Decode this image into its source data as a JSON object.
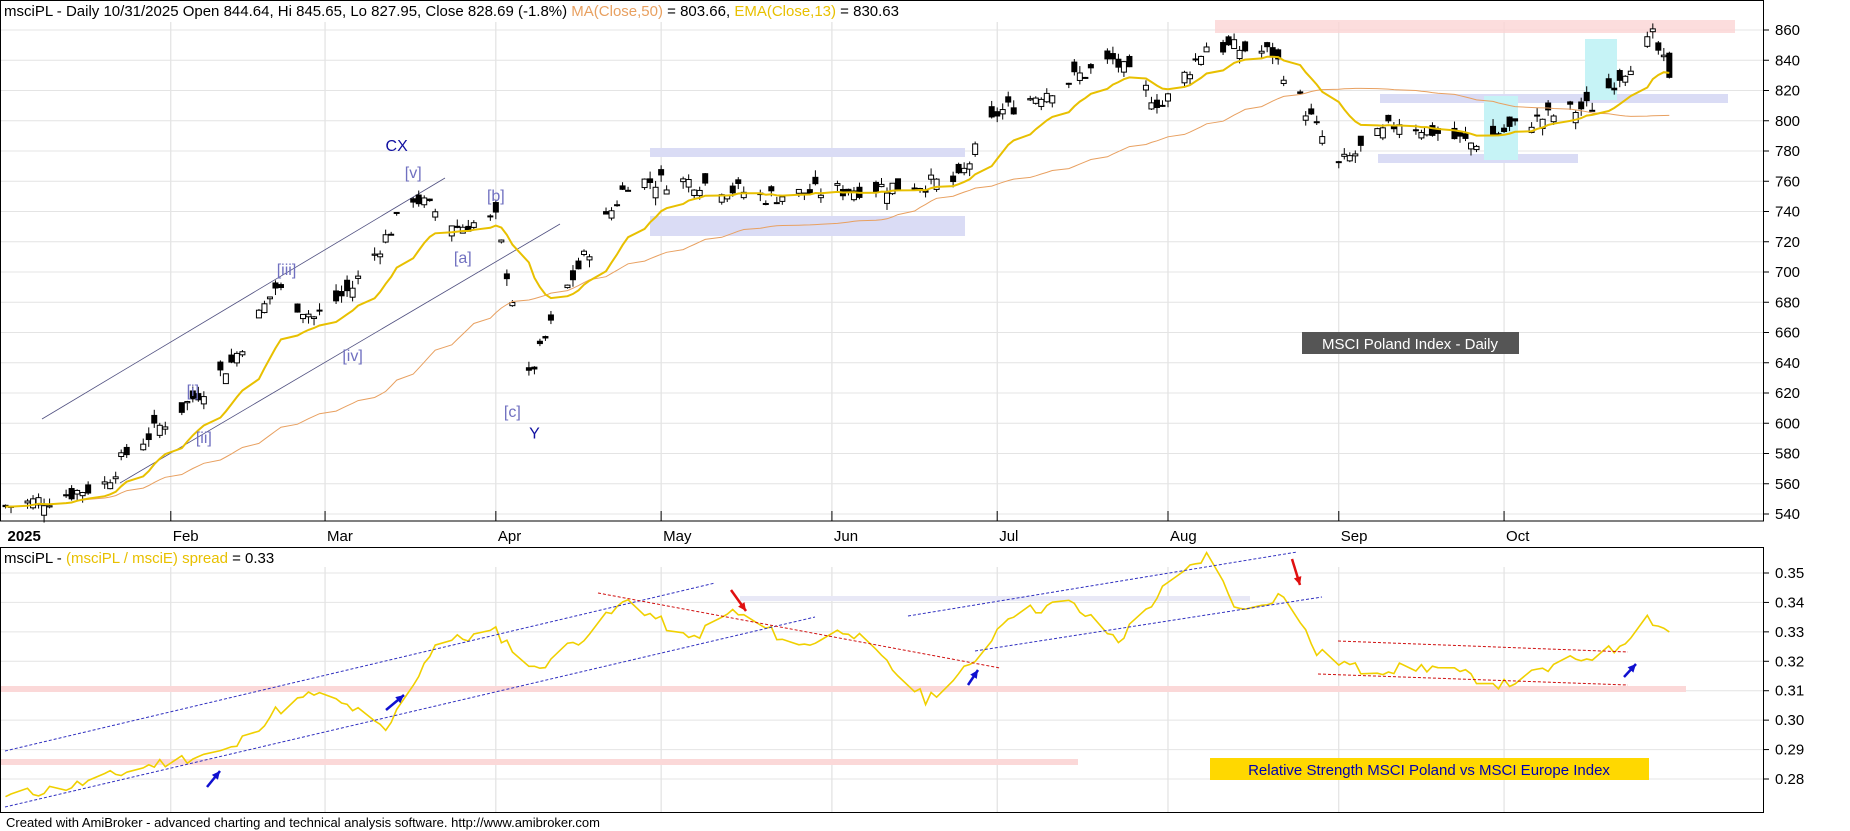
{
  "upper_header": {
    "ticker": "msciPL",
    "info": " - Daily 10/31/2025 Open 844.64, Hi 845.65, Lo 827.95, Close 828.69 (-1.8%) ",
    "ma_label": "MA(Close,50)",
    "ma_value": " = 803.66, ",
    "ema_label": "EMA(Close,13)",
    "ema_value": " = 830.63"
  },
  "lower_header": {
    "ticker": "msciPL",
    "dash": " - ",
    "spread_label": "(msciPL / msciE) spread",
    "spread_value": " = 0.33"
  },
  "footer": "Created with AmiBroker - advanced charting and technical analysis software. http://www.amibroker.com",
  "colors": {
    "ma50": "#e8a060",
    "ema13": "#e8c000",
    "spread": "#f0d000",
    "wave_label": "#7070c0",
    "wave_major": "#1010a0"
  },
  "chart_data": [
    {
      "type": "candlestick",
      "title": "MSCI Poland Index - Daily",
      "ylim": [
        530,
        870
      ],
      "y_ticks": [
        540,
        560,
        580,
        600,
        620,
        640,
        660,
        680,
        700,
        720,
        740,
        760,
        780,
        800,
        820,
        840,
        860
      ],
      "x_tick_labels": [
        "2025",
        "Feb",
        "Mar",
        "Apr",
        "May",
        "Jun",
        "Jul",
        "Aug",
        "Sep",
        "Oct"
      ],
      "last_bar": {
        "date": "10/31/2025",
        "open": 844.64,
        "high": 845.65,
        "low": 827.95,
        "close": 828.69,
        "change_pct": -1.8
      },
      "ma50_last": 803.66,
      "ema13_last": 830.63,
      "close_series_approx": [
        {
          "date": "2025-01-02",
          "close": 545
        },
        {
          "date": "2025-01-10",
          "close": 550
        },
        {
          "date": "2025-01-20",
          "close": 560
        },
        {
          "date": "2025-01-24",
          "close": 580
        },
        {
          "date": "2025-02-03",
          "close": 610
        },
        {
          "date": "2025-02-12",
          "close": 640
        },
        {
          "date": "2025-02-20",
          "close": 690
        },
        {
          "date": "2025-02-27",
          "close": 670
        },
        {
          "date": "2025-03-06",
          "close": 690
        },
        {
          "date": "2025-03-17",
          "close": 750
        },
        {
          "date": "2025-03-25",
          "close": 730
        },
        {
          "date": "2025-04-01",
          "close": 735
        },
        {
          "date": "2025-04-07",
          "close": 630
        },
        {
          "date": "2025-04-14",
          "close": 690
        },
        {
          "date": "2025-04-25",
          "close": 760
        },
        {
          "date": "2025-05-07",
          "close": 760
        },
        {
          "date": "2025-05-20",
          "close": 750
        },
        {
          "date": "2025-06-05",
          "close": 755
        },
        {
          "date": "2025-06-24",
          "close": 760
        },
        {
          "date": "2025-07-01",
          "close": 805
        },
        {
          "date": "2025-07-10",
          "close": 820
        },
        {
          "date": "2025-07-22",
          "close": 840
        },
        {
          "date": "2025-07-31",
          "close": 810
        },
        {
          "date": "2025-08-08",
          "close": 850
        },
        {
          "date": "2025-08-20",
          "close": 845
        },
        {
          "date": "2025-09-01",
          "close": 770
        },
        {
          "date": "2025-09-12",
          "close": 800
        },
        {
          "date": "2025-09-25",
          "close": 785
        },
        {
          "date": "2025-10-06",
          "close": 800
        },
        {
          "date": "2025-10-17",
          "close": 810
        },
        {
          "date": "2025-10-28",
          "close": 855
        },
        {
          "date": "2025-10-31",
          "close": 828.69
        }
      ],
      "wave_labels": [
        {
          "text": "[i]",
          "date": "2025-02-05",
          "value": 618
        },
        {
          "text": "[ii]",
          "date": "2025-02-07",
          "value": 587
        },
        {
          "text": "[iii]",
          "date": "2025-02-22",
          "value": 698
        },
        {
          "text": "[iv]",
          "date": "2025-03-06",
          "value": 641
        },
        {
          "text": "[v]",
          "date": "2025-03-17",
          "value": 762
        },
        {
          "text": "[a]",
          "date": "2025-03-26",
          "value": 706
        },
        {
          "text": "[b]",
          "date": "2025-04-01",
          "value": 747
        },
        {
          "text": "[c]",
          "date": "2025-04-04",
          "value": 604
        },
        {
          "text": "CX",
          "date": "2025-03-14",
          "value": 780
        },
        {
          "text": "Y",
          "date": "2025-04-08",
          "value": 590
        }
      ]
    },
    {
      "type": "line",
      "title": "Relative Strength MSCI Poland vs MSCI Europe Index",
      "series": [
        {
          "name": "(msciPL / msciE) spread",
          "last": 0.33
        }
      ],
      "ylim": [
        0.273,
        0.356
      ],
      "y_ticks": [
        0.28,
        0.29,
        0.3,
        0.31,
        0.32,
        0.33,
        0.34,
        0.35
      ],
      "values_approx": [
        {
          "date": "2025-01-02",
          "value": 0.274
        },
        {
          "date": "2025-01-15",
          "value": 0.278
        },
        {
          "date": "2025-01-29",
          "value": 0.285
        },
        {
          "date": "2025-02-12",
          "value": 0.29
        },
        {
          "date": "2025-02-20",
          "value": 0.303
        },
        {
          "date": "2025-02-27",
          "value": 0.309
        },
        {
          "date": "2025-03-06",
          "value": 0.304
        },
        {
          "date": "2025-03-12",
          "value": 0.296
        },
        {
          "date": "2025-03-21",
          "value": 0.326
        },
        {
          "date": "2025-04-01",
          "value": 0.33
        },
        {
          "date": "2025-04-08",
          "value": 0.317
        },
        {
          "date": "2025-04-18",
          "value": 0.33
        },
        {
          "date": "2025-04-25",
          "value": 0.341
        },
        {
          "date": "2025-05-06",
          "value": 0.327
        },
        {
          "date": "2025-05-14",
          "value": 0.337
        },
        {
          "date": "2025-05-26",
          "value": 0.325
        },
        {
          "date": "2025-06-04",
          "value": 0.331
        },
        {
          "date": "2025-06-18",
          "value": 0.307
        },
        {
          "date": "2025-06-26",
          "value": 0.318
        },
        {
          "date": "2025-07-03",
          "value": 0.336
        },
        {
          "date": "2025-07-14",
          "value": 0.34
        },
        {
          "date": "2025-07-23",
          "value": 0.327
        },
        {
          "date": "2025-07-31",
          "value": 0.344
        },
        {
          "date": "2025-08-08",
          "value": 0.356
        },
        {
          "date": "2025-08-14",
          "value": 0.337
        },
        {
          "date": "2025-08-22",
          "value": 0.343
        },
        {
          "date": "2025-08-28",
          "value": 0.323
        },
        {
          "date": "2025-09-05",
          "value": 0.317
        },
        {
          "date": "2025-09-18",
          "value": 0.318
        },
        {
          "date": "2025-10-01",
          "value": 0.312
        },
        {
          "date": "2025-10-13",
          "value": 0.32
        },
        {
          "date": "2025-10-21",
          "value": 0.324
        },
        {
          "date": "2025-10-27",
          "value": 0.335
        },
        {
          "date": "2025-10-31",
          "value": 0.33
        }
      ]
    }
  ]
}
